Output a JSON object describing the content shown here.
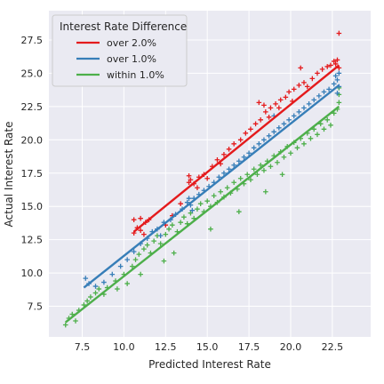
{
  "chart_data": {
    "type": "scatter",
    "title": "",
    "xlabel": "Predicted Interest Rate",
    "ylabel": "Actual Interest Rate",
    "xlim": [
      5.5,
      24.8
    ],
    "ylim": [
      5.2,
      29.7
    ],
    "xticks": [
      "7.5",
      "10.0",
      "12.5",
      "15.0",
      "17.5",
      "20.0",
      "22.5"
    ],
    "yticks": [
      "7.5",
      "10.0",
      "12.5",
      "15.0",
      "17.5",
      "20.0",
      "22.5",
      "25.0",
      "27.5"
    ],
    "grid": true,
    "marker": "+",
    "legend": {
      "title": "Interest Rate Difference",
      "position": "top-left"
    },
    "series": [
      {
        "name": "over 2.0%",
        "color": "#e41a1c",
        "fit_line": [
          [
            10.6,
            13.1
          ],
          [
            22.9,
            25.6
          ]
        ],
        "points": [
          [
            10.6,
            13.0
          ],
          [
            10.6,
            14.0
          ],
          [
            10.8,
            13.4
          ],
          [
            11.0,
            14.1
          ],
          [
            11.0,
            13.2
          ],
          [
            11.3,
            13.8
          ],
          [
            11.5,
            14.0
          ],
          [
            11.2,
            12.9
          ],
          [
            12.5,
            13.6
          ],
          [
            12.9,
            14.3
          ],
          [
            13.4,
            15.2
          ],
          [
            13.9,
            16.8
          ],
          [
            13.9,
            17.3
          ],
          [
            14.0,
            17.0
          ],
          [
            14.2,
            16.7
          ],
          [
            14.5,
            17.2
          ],
          [
            14.8,
            17.4
          ],
          [
            15.0,
            17.1
          ],
          [
            15.3,
            18.0
          ],
          [
            15.6,
            18.5
          ],
          [
            15.8,
            18.2
          ],
          [
            16.0,
            18.9
          ],
          [
            16.3,
            19.3
          ],
          [
            16.6,
            19.7
          ],
          [
            17.0,
            20.0
          ],
          [
            17.3,
            20.5
          ],
          [
            17.6,
            20.8
          ],
          [
            17.9,
            21.2
          ],
          [
            18.2,
            21.5
          ],
          [
            18.5,
            22.1
          ],
          [
            18.1,
            22.8
          ],
          [
            18.4,
            22.6
          ],
          [
            18.8,
            22.4
          ],
          [
            19.1,
            22.7
          ],
          [
            19.4,
            23.0
          ],
          [
            19.7,
            23.2
          ],
          [
            19.9,
            23.6
          ],
          [
            20.2,
            23.8
          ],
          [
            20.5,
            24.1
          ],
          [
            20.8,
            24.3
          ],
          [
            21.0,
            24.0
          ],
          [
            21.3,
            24.6
          ],
          [
            21.6,
            25.0
          ],
          [
            21.9,
            25.3
          ],
          [
            22.2,
            25.5
          ],
          [
            22.4,
            25.6
          ],
          [
            22.6,
            25.9
          ],
          [
            22.8,
            26.0
          ],
          [
            22.9,
            25.4
          ],
          [
            22.7,
            25.7
          ],
          [
            22.9,
            28.0
          ],
          [
            20.6,
            25.4
          ],
          [
            20.1,
            22.9
          ],
          [
            19.3,
            22.4
          ],
          [
            18.7,
            21.7
          ],
          [
            14.4,
            16.4
          ]
        ]
      },
      {
        "name": "over 1.0%",
        "color": "#377eb8",
        "fit_line": [
          [
            7.6,
            8.9
          ],
          [
            22.9,
            24.1
          ]
        ],
        "points": [
          [
            7.7,
            9.6
          ],
          [
            7.9,
            9.2
          ],
          [
            8.3,
            9.0
          ],
          [
            8.8,
            9.3
          ],
          [
            9.3,
            9.9
          ],
          [
            9.8,
            10.5
          ],
          [
            10.2,
            11.0
          ],
          [
            10.6,
            11.6
          ],
          [
            11.0,
            12.2
          ],
          [
            11.4,
            12.6
          ],
          [
            11.7,
            13.1
          ],
          [
            12.0,
            13.3
          ],
          [
            12.4,
            13.8
          ],
          [
            12.8,
            14.0
          ],
          [
            13.1,
            14.4
          ],
          [
            13.5,
            14.8
          ],
          [
            13.8,
            15.3
          ],
          [
            14.0,
            15.1
          ],
          [
            14.2,
            15.6
          ],
          [
            14.5,
            15.9
          ],
          [
            14.8,
            16.2
          ],
          [
            15.1,
            16.5
          ],
          [
            15.4,
            16.8
          ],
          [
            15.7,
            17.2
          ],
          [
            16.0,
            17.5
          ],
          [
            16.3,
            17.8
          ],
          [
            16.6,
            18.1
          ],
          [
            16.9,
            18.4
          ],
          [
            17.2,
            18.7
          ],
          [
            17.5,
            19.0
          ],
          [
            17.8,
            19.4
          ],
          [
            18.1,
            19.7
          ],
          [
            18.4,
            20.0
          ],
          [
            18.7,
            20.3
          ],
          [
            19.0,
            20.6
          ],
          [
            19.3,
            20.9
          ],
          [
            19.6,
            21.2
          ],
          [
            19.9,
            21.5
          ],
          [
            20.2,
            21.8
          ],
          [
            20.5,
            22.1
          ],
          [
            20.8,
            22.4
          ],
          [
            21.1,
            22.7
          ],
          [
            21.4,
            23.0
          ],
          [
            21.7,
            23.3
          ],
          [
            22.0,
            23.6
          ],
          [
            22.3,
            23.8
          ],
          [
            22.6,
            24.2
          ],
          [
            22.8,
            24.5
          ],
          [
            22.9,
            24.0
          ],
          [
            22.8,
            23.5
          ],
          [
            22.9,
            25.0
          ],
          [
            22.7,
            24.8
          ],
          [
            13.9,
            15.6
          ],
          [
            14.1,
            14.7
          ],
          [
            12.2,
            12.8
          ],
          [
            19.0,
            21.8
          ]
        ]
      },
      {
        "name": "within 1.0%",
        "color": "#4daf4a",
        "fit_line": [
          [
            6.5,
            6.3
          ],
          [
            22.9,
            22.5
          ]
        ],
        "points": [
          [
            6.5,
            6.1
          ],
          [
            6.7,
            6.6
          ],
          [
            6.9,
            6.9
          ],
          [
            7.1,
            6.4
          ],
          [
            7.3,
            7.2
          ],
          [
            7.6,
            7.6
          ],
          [
            7.8,
            7.9
          ],
          [
            8.0,
            8.2
          ],
          [
            8.3,
            8.5
          ],
          [
            8.5,
            8.8
          ],
          [
            8.8,
            8.4
          ],
          [
            9.0,
            8.9
          ],
          [
            9.5,
            9.4
          ],
          [
            10.0,
            9.9
          ],
          [
            10.2,
            9.2
          ],
          [
            10.5,
            10.5
          ],
          [
            10.7,
            11.0
          ],
          [
            10.9,
            11.4
          ],
          [
            11.2,
            11.8
          ],
          [
            11.4,
            12.1
          ],
          [
            11.6,
            11.5
          ],
          [
            11.8,
            12.4
          ],
          [
            12.0,
            12.8
          ],
          [
            12.2,
            12.2
          ],
          [
            12.5,
            12.9
          ],
          [
            12.7,
            13.3
          ],
          [
            12.9,
            13.6
          ],
          [
            13.2,
            13.1
          ],
          [
            13.4,
            13.8
          ],
          [
            13.6,
            14.2
          ],
          [
            13.8,
            13.7
          ],
          [
            14.0,
            14.5
          ],
          [
            14.2,
            14.1
          ],
          [
            14.4,
            14.8
          ],
          [
            14.6,
            15.2
          ],
          [
            14.8,
            14.6
          ],
          [
            15.0,
            15.4
          ],
          [
            15.2,
            15.0
          ],
          [
            15.4,
            15.8
          ],
          [
            15.6,
            15.3
          ],
          [
            15.8,
            16.1
          ],
          [
            16.0,
            15.7
          ],
          [
            16.2,
            16.4
          ],
          [
            16.4,
            16.0
          ],
          [
            16.6,
            16.8
          ],
          [
            16.8,
            16.3
          ],
          [
            17.0,
            17.1
          ],
          [
            17.2,
            16.7
          ],
          [
            17.4,
            17.4
          ],
          [
            17.6,
            17.0
          ],
          [
            17.8,
            17.8
          ],
          [
            18.0,
            17.4
          ],
          [
            18.2,
            18.1
          ],
          [
            18.4,
            17.7
          ],
          [
            18.6,
            18.4
          ],
          [
            18.8,
            18.0
          ],
          [
            19.0,
            18.8
          ],
          [
            19.2,
            18.3
          ],
          [
            19.4,
            19.1
          ],
          [
            19.6,
            18.7
          ],
          [
            19.8,
            19.5
          ],
          [
            20.0,
            19.0
          ],
          [
            20.2,
            19.8
          ],
          [
            20.4,
            19.4
          ],
          [
            20.6,
            20.1
          ],
          [
            20.8,
            19.7
          ],
          [
            21.0,
            20.5
          ],
          [
            21.2,
            20.1
          ],
          [
            21.4,
            20.8
          ],
          [
            21.6,
            20.4
          ],
          [
            21.8,
            21.2
          ],
          [
            22.0,
            20.8
          ],
          [
            22.2,
            21.5
          ],
          [
            22.4,
            21.1
          ],
          [
            22.6,
            22.0
          ],
          [
            22.8,
            22.3
          ],
          [
            22.9,
            22.8
          ],
          [
            22.9,
            23.4
          ],
          [
            22.9,
            23.9
          ],
          [
            13.0,
            11.5
          ],
          [
            12.4,
            10.9
          ],
          [
            15.2,
            13.3
          ],
          [
            16.9,
            14.6
          ],
          [
            18.5,
            16.1
          ],
          [
            19.5,
            17.4
          ],
          [
            9.6,
            8.8
          ],
          [
            11.0,
            9.9
          ]
        ]
      }
    ]
  }
}
